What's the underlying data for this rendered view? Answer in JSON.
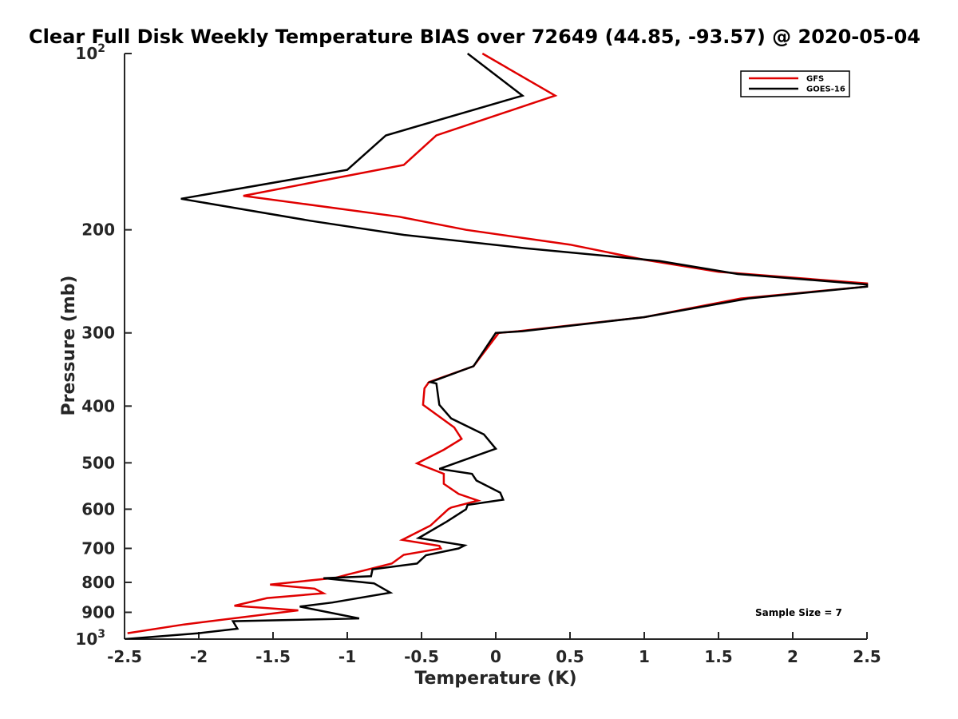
{
  "chart_data": {
    "type": "line",
    "title": "Clear Full Disk Weekly Temperature BIAS over 72649 (44.85, -93.57) @ 2020-05-04",
    "xlabel": "Temperature (K)",
    "ylabel": "Pressure (mb)",
    "xlim": [
      -2.5,
      2.5
    ],
    "ylim": [
      100,
      1000
    ],
    "y_scale": "log",
    "y_reversed": true,
    "x_ticks": [
      "-2.5",
      "-2",
      "-1.5",
      "-1",
      "-0.5",
      "0",
      "0.5",
      "1",
      "1.5",
      "2",
      "2.5"
    ],
    "y_ticks": [
      {
        "value": 100,
        "base": "10",
        "exp": "2"
      },
      {
        "value": 200,
        "label": "200"
      },
      {
        "value": 300,
        "label": "300"
      },
      {
        "value": 400,
        "label": "400"
      },
      {
        "value": 500,
        "label": "500"
      },
      {
        "value": 600,
        "label": "600"
      },
      {
        "value": 700,
        "label": "700"
      },
      {
        "value": 800,
        "label": "800"
      },
      {
        "value": 900,
        "label": "900"
      },
      {
        "value": 1000,
        "base": "10",
        "exp": "3"
      }
    ],
    "grid": false,
    "legend_position": "top-right",
    "annotation": "Sample Size = 7",
    "series": [
      {
        "name": "GFS",
        "color": "#e00000",
        "x": [
          -0.09,
          0.4,
          -0.4,
          -0.62,
          -1.7,
          -0.65,
          -0.2,
          0.5,
          1.0,
          1.5,
          2.5,
          2.5,
          1.65,
          1.0,
          0.15,
          0.02,
          -0.15,
          -0.45,
          -0.48,
          -0.49,
          -0.28,
          -0.23,
          -0.35,
          -0.53,
          -0.35,
          -0.35,
          -0.25,
          -0.12,
          -0.3,
          -0.32,
          -0.44,
          -0.63,
          -0.38,
          -0.37,
          -0.62,
          -0.7,
          -1.0,
          -1.08,
          -1.52,
          -1.22,
          -1.16,
          -1.54,
          -1.76,
          -1.33,
          -2.1,
          -2.48
        ],
        "y": [
          100,
          118,
          138,
          155,
          175,
          190,
          200,
          212,
          225,
          236,
          247,
          250,
          262,
          282,
          298,
          300,
          342,
          364,
          373,
          398,
          435,
          455,
          475,
          501,
          522,
          543,
          565,
          580,
          596,
          600,
          640,
          677,
          693,
          700,
          718,
          743,
          776,
          786,
          807,
          820,
          835,
          851,
          877,
          893,
          944,
          977
        ]
      },
      {
        "name": "GOES-16",
        "color": "#000000",
        "x": [
          -0.19,
          0.18,
          -0.74,
          -1.0,
          -2.12,
          -1.25,
          -0.62,
          0.2,
          1.1,
          1.63,
          2.5,
          2.5,
          1.7,
          1.0,
          0.18,
          0.0,
          -0.15,
          -0.44,
          -0.4,
          -0.38,
          -0.3,
          -0.08,
          0.0,
          -0.13,
          -0.38,
          -0.16,
          -0.13,
          0.03,
          0.05,
          -0.19,
          -0.2,
          -0.33,
          -0.52,
          -0.21,
          -0.25,
          -0.47,
          -0.53,
          -0.83,
          -0.84,
          -1.16,
          -0.82,
          -0.71,
          -1.1,
          -1.32,
          -0.92,
          -1.77,
          -1.74,
          -2.0,
          -2.5
        ],
        "y": [
          100,
          118,
          138,
          158,
          177,
          193,
          204,
          215,
          226,
          238,
          248,
          250,
          262,
          282,
          298,
          300,
          342,
          364,
          366,
          398,
          420,
          447,
          473,
          486,
          512,
          522,
          536,
          562,
          578,
          590,
          600,
          630,
          672,
          692,
          700,
          719,
          743,
          760,
          781,
          787,
          803,
          833,
          866,
          880,
          922,
          932,
          960,
          977,
          1000
        ]
      }
    ]
  }
}
